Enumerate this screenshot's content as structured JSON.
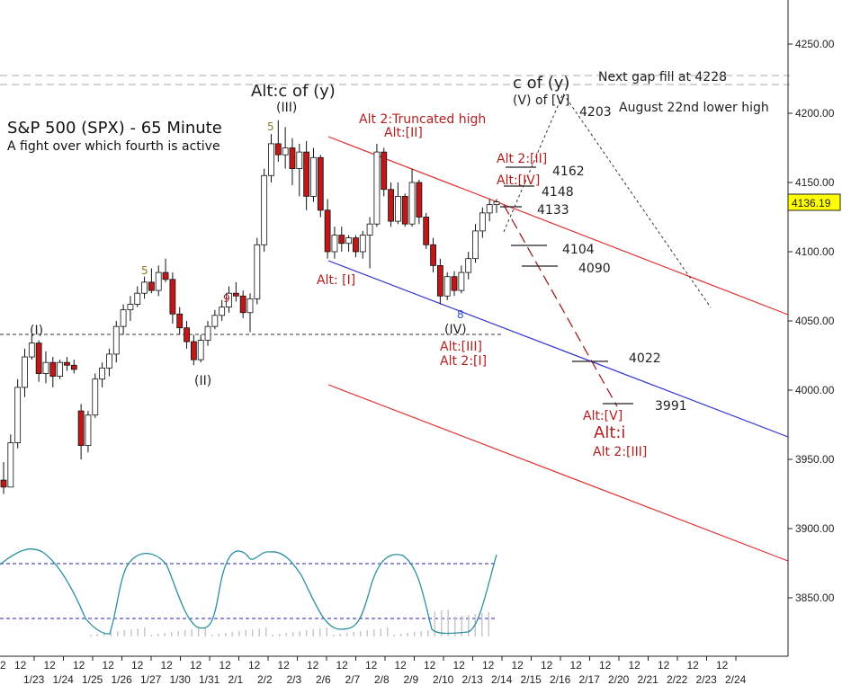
{
  "chart_data": {
    "type": "candlestick",
    "title": "S&P 500 (SPX) - 65 Minute",
    "subtitle": "A fight over which fourth is active",
    "last_price": "4136.19",
    "y_ticks": [
      "4250.00",
      "4200.00",
      "4150.00",
      "4100.00",
      "4050.00",
      "4000.00",
      "3950.00",
      "3900.00",
      "3850.00"
    ],
    "x_dates": [
      "1/23",
      "1/24",
      "1/25",
      "1/26",
      "1/27",
      "1/30",
      "1/31",
      "2/1",
      "2/2",
      "2/3",
      "2/6",
      "2/7",
      "2/8",
      "2/9",
      "2/10",
      "2/13",
      "2/14",
      "2/15",
      "2/16",
      "2/17",
      "2/20",
      "2/21",
      "2/22",
      "2/23",
      "2/24"
    ],
    "x_session_label": "12",
    "candles": [
      [
        3935,
        3948,
        3925,
        3930
      ],
      [
        3930,
        3968,
        3930,
        3962
      ],
      [
        3962,
        4008,
        3958,
        4002
      ],
      [
        4002,
        4030,
        3995,
        4024
      ],
      [
        4024,
        4040,
        4022,
        4034
      ],
      [
        4034,
        4036,
        4006,
        4012
      ],
      [
        4012,
        4028,
        4005,
        4020
      ],
      [
        4020,
        4024,
        4002,
        4010
      ],
      [
        4010,
        4022,
        4008,
        4020
      ],
      [
        4020,
        4024,
        4014,
        4018
      ],
      [
        4018,
        4022,
        4012,
        4015
      ],
      [
        3985,
        3990,
        3950,
        3960
      ],
      [
        3960,
        3985,
        3955,
        3982
      ],
      [
        3982,
        4012,
        3980,
        4008
      ],
      [
        4008,
        4020,
        4002,
        4016
      ],
      [
        4016,
        4030,
        4010,
        4026
      ],
      [
        4026,
        4050,
        4020,
        4046
      ],
      [
        4046,
        4062,
        4040,
        4058
      ],
      [
        4058,
        4068,
        4050,
        4062
      ],
      [
        4062,
        4075,
        4060,
        4070
      ],
      [
        4070,
        4082,
        4066,
        4078
      ],
      [
        4078,
        4088,
        4070,
        4072
      ],
      [
        4072,
        4090,
        4068,
        4085
      ],
      [
        4085,
        4095,
        4078,
        4080
      ],
      [
        4080,
        4085,
        4048,
        4055
      ],
      [
        4055,
        4060,
        4040,
        4045
      ],
      [
        4045,
        4050,
        4030,
        4035
      ],
      [
        4035,
        4040,
        4018,
        4022
      ],
      [
        4022,
        4040,
        4020,
        4036
      ],
      [
        4036,
        4050,
        4032,
        4046
      ],
      [
        4046,
        4058,
        4044,
        4054
      ],
      [
        4054,
        4065,
        4050,
        4060
      ],
      [
        4060,
        4075,
        4056,
        4070
      ],
      [
        4070,
        4078,
        4064,
        4068
      ],
      [
        4068,
        4072,
        4052,
        4056
      ],
      [
        4056,
        4070,
        4042,
        4066
      ],
      [
        4066,
        4110,
        4062,
        4105
      ],
      [
        4105,
        4160,
        4100,
        4155
      ],
      [
        4155,
        4185,
        4150,
        4178
      ],
      [
        4178,
        4195,
        4165,
        4170
      ],
      [
        4170,
        4190,
        4160,
        4175
      ],
      [
        4175,
        4182,
        4148,
        4160
      ],
      [
        4160,
        4178,
        4140,
        4172
      ],
      [
        4172,
        4180,
        4130,
        4140
      ],
      [
        4140,
        4175,
        4136,
        4168
      ],
      [
        4168,
        4170,
        4125,
        4130
      ],
      [
        4130,
        4138,
        4095,
        4100
      ],
      [
        4100,
        4118,
        4095,
        4112
      ],
      [
        4112,
        4118,
        4100,
        4106
      ],
      [
        4106,
        4112,
        4100,
        4110
      ],
      [
        4110,
        4112,
        4096,
        4100
      ],
      [
        4100,
        4115,
        4095,
        4112
      ],
      [
        4112,
        4125,
        4088,
        4120
      ],
      [
        4120,
        4178,
        4118,
        4172
      ],
      [
        4172,
        4175,
        4140,
        4145
      ],
      [
        4145,
        4150,
        4118,
        4122
      ],
      [
        4122,
        4150,
        4120,
        4140
      ],
      [
        4140,
        4142,
        4118,
        4120
      ],
      [
        4120,
        4160,
        4118,
        4150
      ],
      [
        4150,
        4152,
        4120,
        4125
      ],
      [
        4125,
        4128,
        4102,
        4105
      ],
      [
        4105,
        4110,
        4085,
        4090
      ],
      [
        4090,
        4095,
        4062,
        4068
      ],
      [
        4068,
        4085,
        4065,
        4082
      ],
      [
        4082,
        4086,
        4068,
        4072
      ],
      [
        4072,
        4090,
        4070,
        4085
      ],
      [
        4085,
        4100,
        4080,
        4095
      ],
      [
        4095,
        4120,
        4092,
        4115
      ],
      [
        4115,
        4132,
        4110,
        4128
      ],
      [
        4128,
        4138,
        4122,
        4134
      ],
      [
        4134,
        4138,
        4128,
        4136
      ]
    ]
  },
  "annotations": {
    "next_gap": "Next gap fill at 4228",
    "august": "August 22nd lower high",
    "c_of_y": "c of (y)",
    "v_of_v": "(V) of [V]",
    "alt_c_of_y": "Alt:c of (y)",
    "w_III": "(III)",
    "five_a": "5",
    "five_b": "5",
    "nine": "9",
    "eight": "8",
    "alt2_trunc": "Alt 2:Truncated high",
    "alt_II_top": "Alt:[II]",
    "alt2_II": "Alt 2:[II]",
    "alt_IV": "Alt:[IV]",
    "alt_I": "Alt: [I]",
    "w_IV": "(IV)",
    "alt_III": "Alt:[III]",
    "alt2_I": "Alt 2:[I]",
    "w_I": "(I)",
    "w_II": "(II)",
    "alt_V": "Alt:[V]",
    "alt_i": "Alt:i",
    "alt2_III": "Alt 2:[III]",
    "lvl_4203": "4203",
    "lvl_4162": "4162",
    "lvl_4148": "4148",
    "lvl_4133": "4133",
    "lvl_4104": "4104",
    "lvl_4090": "4090",
    "lvl_4022": "4022",
    "lvl_3991": "3991"
  }
}
